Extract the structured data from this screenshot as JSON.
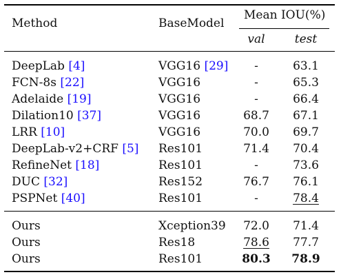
{
  "header": {
    "method": "Method",
    "basemodel": "BaseModel",
    "group": "Mean IOU(%)",
    "val": "val",
    "test": "test"
  },
  "rows": [
    {
      "method": "DeepLab",
      "method_ref": "[4]",
      "base": "VGG16",
      "base_ref": "[29]",
      "val": "-",
      "test": "63.1"
    },
    {
      "method": "FCN-8s",
      "method_ref": "[22]",
      "base": "VGG16",
      "base_ref": "",
      "val": "-",
      "test": "65.3"
    },
    {
      "method": "Adelaide",
      "method_ref": "[19]",
      "base": "VGG16",
      "base_ref": "",
      "val": "-",
      "test": "66.4"
    },
    {
      "method": "Dilation10",
      "method_ref": "[37]",
      "base": "VGG16",
      "base_ref": "",
      "val": "68.7",
      "test": "67.1"
    },
    {
      "method": "LRR",
      "method_ref": "[10]",
      "base": "VGG16",
      "base_ref": "",
      "val": "70.0",
      "test": "69.7"
    },
    {
      "method": "DeepLab-v2+CRF",
      "method_ref": "[5]",
      "base": "Res101",
      "base_ref": "",
      "val": "71.4",
      "test": "70.4"
    },
    {
      "method": "RefineNet",
      "method_ref": "[18]",
      "base": "Res101",
      "base_ref": "",
      "val": "-",
      "test": "73.6"
    },
    {
      "method": "DUC",
      "method_ref": "[32]",
      "base": "Res152",
      "base_ref": "",
      "val": "76.7",
      "test": "76.1"
    },
    {
      "method": "PSPNet",
      "method_ref": "[40]",
      "base": "Res101",
      "base_ref": "",
      "val": "-",
      "test": "78.4",
      "test_underline": true
    }
  ],
  "ours": [
    {
      "method": "Ours",
      "base": "Xception39",
      "val": "72.0",
      "test": "71.4"
    },
    {
      "method": "Ours",
      "base": "Res18",
      "val": "78.6",
      "test": "77.7",
      "val_underline": true
    },
    {
      "method": "Ours",
      "base": "Res101",
      "val": "80.3",
      "test": "78.9",
      "val_bold": true,
      "test_bold": true
    }
  ]
}
